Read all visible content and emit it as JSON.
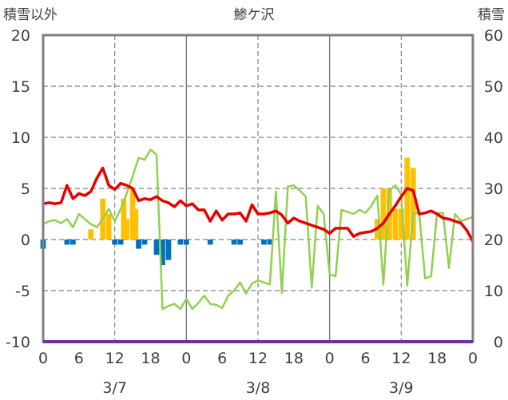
{
  "chart_data": {
    "type": "bar+line",
    "title": "鯵ケ沢",
    "left_axis_label": "積雪以外",
    "right_axis_label": "積雪",
    "ylim_left": [
      -10,
      20
    ],
    "ylim_right": [
      0,
      60
    ],
    "y_ticks_left": [
      "20",
      "15",
      "10",
      "5",
      "0",
      "-5",
      "-10"
    ],
    "y_ticks_right": [
      "60",
      "50",
      "40",
      "30",
      "20",
      "10",
      "0"
    ],
    "x_range_hours": [
      0,
      72
    ],
    "x_ticks": [
      {
        "h": 0,
        "label": "0"
      },
      {
        "h": 6,
        "label": "6"
      },
      {
        "h": 12,
        "label": "12"
      },
      {
        "h": 18,
        "label": "18"
      },
      {
        "h": 24,
        "label": "0"
      },
      {
        "h": 30,
        "label": "6"
      },
      {
        "h": 36,
        "label": "12"
      },
      {
        "h": 42,
        "label": "18"
      },
      {
        "h": 48,
        "label": "0"
      },
      {
        "h": 54,
        "label": "6"
      },
      {
        "h": 60,
        "label": "12"
      },
      {
        "h": 66,
        "label": "18"
      },
      {
        "h": 72,
        "label": "0"
      }
    ],
    "dates": [
      {
        "h": 12,
        "label": "3/7"
      },
      {
        "h": 36,
        "label": "3/8"
      },
      {
        "h": 60,
        "label": "3/9"
      }
    ],
    "colors": {
      "temperature": "#e60000",
      "wind": "#92d050",
      "precip_pos": "#ffc000",
      "precip_neg": "#0070c0",
      "zero_line": "#7030a0",
      "frame": "#808080"
    },
    "bars": [
      {
        "h": 0,
        "v": -0.9
      },
      {
        "h": 4,
        "v": -0.5
      },
      {
        "h": 5,
        "v": -0.5
      },
      {
        "h": 8,
        "v": 1.0
      },
      {
        "h": 10,
        "v": 4.0
      },
      {
        "h": 11,
        "v": 2.5
      },
      {
        "h": 12,
        "v": -0.5
      },
      {
        "h": 13,
        "v": -0.5
      },
      {
        "h": 13.5,
        "v": 4.0
      },
      {
        "h": 14,
        "v": 2.0
      },
      {
        "h": 15,
        "v": 5.0
      },
      {
        "h": 15.5,
        "v": 3.0
      },
      {
        "h": 16,
        "v": -0.9
      },
      {
        "h": 17,
        "v": -0.5
      },
      {
        "h": 19,
        "v": -1.5
      },
      {
        "h": 20,
        "v": -2.5
      },
      {
        "h": 21,
        "v": -2.0
      },
      {
        "h": 23,
        "v": -0.5
      },
      {
        "h": 24,
        "v": -0.5
      },
      {
        "h": 28,
        "v": -0.5
      },
      {
        "h": 32,
        "v": -0.5
      },
      {
        "h": 33,
        "v": -0.5
      },
      {
        "h": 37,
        "v": -0.5
      },
      {
        "h": 38,
        "v": -0.5
      },
      {
        "h": 56,
        "v": 2.0
      },
      {
        "h": 57,
        "v": 5.0
      },
      {
        "h": 58,
        "v": 5.0
      },
      {
        "h": 59,
        "v": 3.0
      },
      {
        "h": 60,
        "v": 3.0
      },
      {
        "h": 61,
        "v": 8.0
      },
      {
        "h": 62,
        "v": 7.0
      }
    ],
    "temperature": [
      [
        0,
        3.5
      ],
      [
        1,
        3.6
      ],
      [
        2,
        3.5
      ],
      [
        3,
        3.6
      ],
      [
        4,
        5.3
      ],
      [
        5,
        4.0
      ],
      [
        6,
        4.5
      ],
      [
        7,
        4.3
      ],
      [
        8,
        4.7
      ],
      [
        9,
        6.0
      ],
      [
        10,
        7.0
      ],
      [
        11,
        5.3
      ],
      [
        12,
        4.9
      ],
      [
        13,
        5.5
      ],
      [
        14,
        5.3
      ],
      [
        15,
        5.0
      ],
      [
        16,
        3.8
      ],
      [
        17,
        4.0
      ],
      [
        18,
        3.9
      ],
      [
        19,
        4.2
      ],
      [
        20,
        3.8
      ],
      [
        21,
        3.6
      ],
      [
        22,
        3.2
      ],
      [
        23,
        3.8
      ],
      [
        24,
        3.3
      ],
      [
        25,
        3.5
      ],
      [
        26,
        2.9
      ],
      [
        27,
        2.9
      ],
      [
        28,
        1.8
      ],
      [
        29,
        2.8
      ],
      [
        30,
        1.9
      ],
      [
        31,
        2.5
      ],
      [
        32,
        2.5
      ],
      [
        33,
        2.6
      ],
      [
        34,
        1.8
      ],
      [
        35,
        3.4
      ],
      [
        36,
        2.5
      ],
      [
        37,
        2.5
      ],
      [
        38,
        2.6
      ],
      [
        39,
        2.8
      ],
      [
        40,
        2.4
      ],
      [
        41,
        1.6
      ],
      [
        42,
        2.1
      ],
      [
        43,
        1.8
      ],
      [
        44,
        1.6
      ],
      [
        45,
        1.4
      ],
      [
        46,
        1.2
      ],
      [
        47,
        1.0
      ],
      [
        48,
        0.6
      ],
      [
        49,
        1.1
      ],
      [
        50,
        1.1
      ],
      [
        51,
        1.1
      ],
      [
        52,
        0.3
      ],
      [
        53,
        0.6
      ],
      [
        54,
        0.7
      ],
      [
        55,
        0.8
      ],
      [
        56,
        1.1
      ],
      [
        57,
        1.6
      ],
      [
        58,
        2.5
      ],
      [
        59,
        3.3
      ],
      [
        60,
        4.2
      ],
      [
        61,
        5.0
      ],
      [
        62,
        4.8
      ],
      [
        63,
        2.5
      ],
      [
        64,
        2.6
      ],
      [
        65,
        2.8
      ],
      [
        66,
        2.5
      ],
      [
        67,
        2.1
      ],
      [
        68,
        2.0
      ],
      [
        69,
        1.8
      ],
      [
        70,
        1.6
      ],
      [
        71,
        0.9
      ],
      [
        72,
        -0.2
      ]
    ],
    "wind": [
      [
        0,
        1.5
      ],
      [
        1,
        1.8
      ],
      [
        2,
        1.9
      ],
      [
        3,
        1.6
      ],
      [
        4,
        2.0
      ],
      [
        5,
        1.2
      ],
      [
        6,
        2.5
      ],
      [
        7,
        2.0
      ],
      [
        8,
        1.5
      ],
      [
        9,
        1.2
      ],
      [
        10,
        2.0
      ],
      [
        11,
        3.0
      ],
      [
        12,
        1.8
      ],
      [
        13,
        3.0
      ],
      [
        14,
        4.5
      ],
      [
        15,
        6.2
      ],
      [
        16,
        8.0
      ],
      [
        17,
        7.8
      ],
      [
        18,
        8.8
      ],
      [
        19,
        8.3
      ],
      [
        20,
        -6.8
      ],
      [
        21,
        -6.5
      ],
      [
        22,
        -6.3
      ],
      [
        23,
        -6.8
      ],
      [
        24,
        -5.8
      ],
      [
        25,
        -6.8
      ],
      [
        26,
        -6.2
      ],
      [
        27,
        -5.5
      ],
      [
        28,
        -6.3
      ],
      [
        29,
        -6.4
      ],
      [
        30,
        -6.7
      ],
      [
        31,
        -5.5
      ],
      [
        32,
        -5.0
      ],
      [
        33,
        -4.2
      ],
      [
        34,
        -5.3
      ],
      [
        35,
        -4.3
      ],
      [
        36,
        -4.0
      ],
      [
        37,
        -4.2
      ],
      [
        38,
        -4.4
      ],
      [
        39,
        4.7
      ],
      [
        40,
        -5.2
      ],
      [
        41,
        5.2
      ],
      [
        42,
        5.3
      ],
      [
        43,
        4.8
      ],
      [
        44,
        4.2
      ],
      [
        45,
        -4.7
      ],
      [
        46,
        3.3
      ],
      [
        47,
        2.5
      ],
      [
        48,
        -3.4
      ],
      [
        49,
        -3.6
      ],
      [
        50,
        2.9
      ],
      [
        51,
        2.7
      ],
      [
        52,
        2.5
      ],
      [
        53,
        2.9
      ],
      [
        54,
        2.6
      ],
      [
        55,
        3.3
      ],
      [
        56,
        4.3
      ],
      [
        57,
        -4.4
      ],
      [
        58,
        4.8
      ],
      [
        59,
        5.3
      ],
      [
        60,
        4.4
      ],
      [
        61,
        -4.5
      ],
      [
        62,
        2.6
      ],
      [
        63,
        2.6
      ],
      [
        64,
        -3.8
      ],
      [
        65,
        -3.6
      ],
      [
        66,
        2.6
      ],
      [
        67,
        2.6
      ],
      [
        68,
        -2.8
      ],
      [
        69,
        2.5
      ],
      [
        70,
        1.8
      ],
      [
        71,
        2.0
      ],
      [
        72,
        2.2
      ]
    ]
  }
}
